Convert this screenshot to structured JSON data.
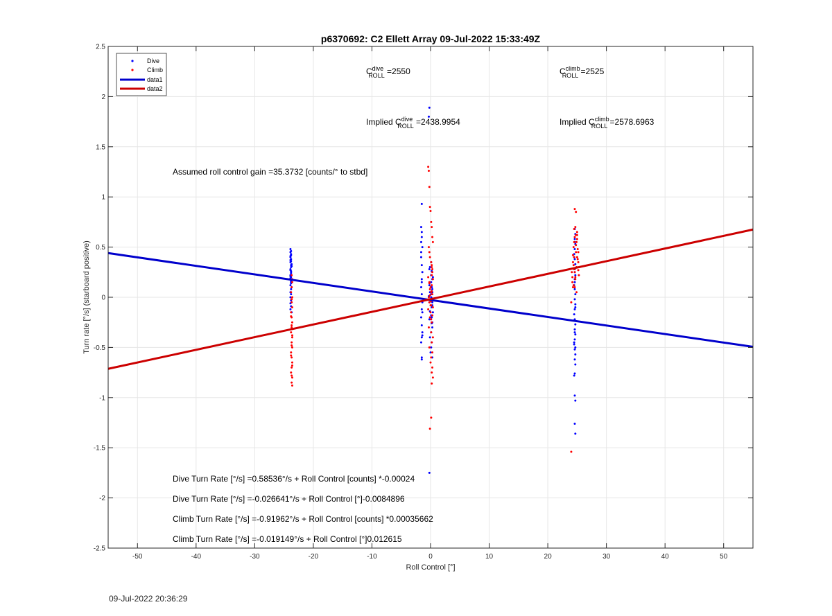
{
  "chart_data": {
    "type": "scatter",
    "title": "p6370692: C2 Ellett Array 09-Jul-2022 15:33:49Z",
    "xlabel": "Roll Control [°]",
    "ylabel": "Turn rate [°/s] (starboard positive)",
    "xlim": [
      -55,
      55
    ],
    "ylim": [
      -2.5,
      2.5
    ],
    "x_ticks": [
      -50,
      -40,
      -30,
      -20,
      -10,
      0,
      10,
      20,
      30,
      40,
      50
    ],
    "y_ticks": [
      -2.5,
      -2,
      -1.5,
      -1,
      -0.5,
      0,
      0.5,
      1,
      1.5,
      2,
      2.5
    ],
    "grid": true,
    "legend_position": "top-left",
    "series": [
      {
        "name": "Dive",
        "kind": "points",
        "color": "#0000ff",
        "x": [
          -23.9,
          -23.9,
          -23.8,
          -23.9,
          -23.8,
          -23.9,
          -23.7,
          -23.8,
          -23.9,
          -23.8,
          -23.9,
          -23.8,
          -23.9,
          -23.8,
          -23.9,
          -23.7,
          -23.8,
          -23.9,
          -23.8,
          -23.9,
          -23.8,
          -23.9,
          -23.8,
          -23.9,
          -23.7,
          -23.8,
          -23.9,
          -23.8,
          -23.9,
          -23.8,
          -23.9,
          -23.8,
          -23.8,
          -23.9,
          -23.8,
          -23.7,
          -23.8,
          -23.9,
          -23.8,
          -1.5,
          -1.6,
          -1.5,
          -1.4,
          -1.6,
          -1.5,
          -1.4,
          -1.5,
          -1.6,
          -1.5,
          -1.4,
          -1.5,
          -1.6,
          -1.5,
          -1.4,
          -1.5,
          -1.6,
          -1.5,
          -1.5,
          -1.6,
          -1.4,
          -1.5,
          -1.6,
          -1.5,
          -1.4,
          -0.2,
          -0.3,
          -0.1,
          -0.2,
          0.2,
          0.1,
          0.3,
          0.1,
          -0.2,
          0.2,
          0.3,
          -0.1,
          0.1,
          -0.3,
          0.2,
          0.1,
          -0.2,
          0.3,
          0.2,
          -0.1,
          0.1,
          -0.2,
          0.2,
          0.3,
          0.1,
          -0.1,
          0.2,
          0.1,
          0.0,
          0.3,
          -0.2,
          0.1,
          0.2,
          0.3,
          0.4,
          0.2,
          0.3,
          0.4,
          0.3,
          0.1,
          24.6,
          24.7,
          24.6,
          24.7,
          24.6,
          24.5,
          24.6,
          24.7,
          24.6,
          24.7,
          24.6,
          24.5,
          24.6,
          24.7,
          24.6,
          24.7,
          24.6,
          24.5,
          24.6,
          24.7,
          24.6,
          24.7,
          24.6,
          24.5,
          24.6,
          24.7,
          24.6,
          24.7,
          24.6,
          24.5,
          24.6,
          24.7,
          24.6,
          24.7,
          24.6,
          24.5,
          24.6,
          24.7,
          24.6,
          24.7,
          24.6,
          24.5
        ],
        "y": [
          0.48,
          0.45,
          0.43,
          0.4,
          0.38,
          0.35,
          0.33,
          0.3,
          0.27,
          0.25,
          0.22,
          0.2,
          0.18,
          0.15,
          0.12,
          0.1,
          0.08,
          0.05,
          0.03,
          0.0,
          -0.03,
          -0.06,
          -0.09,
          -0.12,
          -0.15,
          0.42,
          0.37,
          0.32,
          0.28,
          0.24,
          0.19,
          0.14,
          0.46,
          0.41,
          0.36,
          0.31,
          0.26,
          0.21,
          0.16,
          0.93,
          0.7,
          0.6,
          0.5,
          0.4,
          0.32,
          0.25,
          0.18,
          0.1,
          0.03,
          -0.05,
          -0.12,
          -0.2,
          -0.28,
          -0.35,
          -0.4,
          -0.45,
          -0.6,
          -0.62,
          0.55,
          -0.38,
          0.65,
          0.45,
          0.15,
          -0.15,
          1.89,
          1.8,
          0.3,
          0.28,
          0.26,
          0.22,
          0.18,
          0.15,
          0.12,
          0.1,
          0.08,
          0.05,
          0.03,
          0.01,
          -0.01,
          -0.03,
          -0.05,
          -0.08,
          -0.1,
          -0.14,
          -0.18,
          -0.22,
          -0.26,
          -0.3,
          -0.35,
          -0.4,
          -0.45,
          -0.5,
          -0.55,
          -0.6,
          -1.75,
          0.35,
          -0.2,
          0.05,
          -0.15,
          0.1,
          -0.25,
          0.2,
          -0.05,
          0.0,
          0.68,
          0.63,
          0.58,
          0.53,
          0.48,
          0.43,
          0.38,
          0.33,
          0.28,
          0.22,
          0.18,
          0.12,
          0.08,
          0.03,
          -0.02,
          -0.07,
          -0.12,
          -0.17,
          -0.22,
          -0.27,
          -0.32,
          -0.37,
          -0.42,
          -0.47,
          -0.52,
          -0.57,
          -0.62,
          -0.67,
          -0.76,
          -0.78,
          -0.98,
          -1.03,
          -1.26,
          -1.36,
          0.55,
          0.4,
          0.15,
          -0.1,
          -0.35,
          -0.5,
          0.25,
          -0.45
        ]
      },
      {
        "name": "Climb",
        "kind": "points",
        "color": "#ff0000",
        "x": [
          -23.7,
          -23.6,
          -23.7,
          -23.8,
          -23.6,
          -23.7,
          -23.6,
          -23.8,
          -23.7,
          -23.6,
          -23.7,
          -23.8,
          -23.6,
          -23.7,
          -23.6,
          -23.8,
          -23.7,
          -23.6,
          -23.7,
          -23.8,
          -23.6,
          -23.7,
          -23.6,
          -23.8,
          -23.7,
          -23.6,
          -23.7,
          -23.8,
          -23.6,
          -23.7,
          -23.6,
          -23.7,
          -0.4,
          -0.3,
          -0.2,
          -0.1,
          0.0,
          0.1,
          0.2,
          0.3,
          0.4,
          -0.3,
          -0.2,
          -0.1,
          0.1,
          0.2,
          0.3,
          -0.4,
          0.4,
          -0.2,
          0.2,
          0.0,
          -0.1,
          0.1,
          0.3,
          -0.3,
          0.2,
          -0.2,
          0.1,
          0.4,
          -0.4,
          0.0,
          0.3,
          -0.1,
          0.2,
          -0.3,
          0.1,
          0.4,
          0.2,
          -0.2,
          0.3,
          0.1,
          0.0,
          0.3,
          0.2,
          0.4,
          0.2,
          0.1,
          -0.1,
          0.3,
          0.2,
          0.1,
          -0.2,
          0.0,
          0.2,
          0.1,
          -0.1,
          0.2,
          24.0,
          24.2,
          24.3,
          24.4,
          24.5,
          24.6,
          24.8,
          25.0,
          25.2,
          25.4,
          24.1,
          24.3,
          24.5,
          24.7,
          24.9,
          25.1,
          25.3,
          24.2,
          24.4,
          24.6,
          24.8,
          25.0,
          25.2,
          24.3,
          24.5,
          24.7,
          24.9,
          25.1,
          24.4,
          24.6,
          24.8,
          25.0,
          24.5,
          24.7,
          24.9,
          24.6,
          24.8,
          25.0,
          24.0,
          25.2
        ],
        "y": [
          0.22,
          0.15,
          0.1,
          0.05,
          0.0,
          -0.05,
          -0.1,
          -0.15,
          -0.2,
          -0.25,
          -0.3,
          -0.35,
          -0.4,
          -0.45,
          -0.5,
          -0.55,
          -0.6,
          -0.65,
          -0.7,
          -0.75,
          -0.8,
          -0.85,
          -0.88,
          -0.19,
          -0.28,
          -0.38,
          -0.48,
          -0.58,
          -0.68,
          -0.78,
          0.18,
          -0.02,
          1.3,
          1.26,
          1.1,
          0.9,
          0.86,
          0.75,
          0.7,
          0.6,
          0.55,
          0.5,
          0.45,
          0.4,
          0.35,
          0.3,
          0.25,
          0.2,
          0.18,
          0.15,
          0.12,
          0.1,
          0.08,
          0.05,
          0.03,
          0.0,
          -0.02,
          -0.05,
          -0.08,
          -0.1,
          -0.12,
          -0.15,
          -0.18,
          -0.2,
          -0.25,
          -0.3,
          -0.35,
          -0.4,
          -0.45,
          -0.5,
          -0.55,
          -0.6,
          -0.65,
          -0.7,
          -0.75,
          -0.8,
          -0.86,
          -1.2,
          -1.31,
          0.28,
          0.22,
          -0.22,
          0.14,
          -0.08,
          0.06,
          -0.04,
          0.02,
          0.32,
          -0.05,
          0.2,
          0.35,
          0.5,
          0.55,
          0.6,
          0.62,
          0.65,
          0.45,
          0.3,
          0.25,
          0.1,
          0.4,
          0.7,
          0.55,
          0.48,
          0.22,
          0.15,
          0.32,
          0.88,
          0.85,
          0.62,
          0.35,
          0.42,
          0.28,
          0.18,
          0.05,
          0.38,
          0.12,
          0.25,
          0.52,
          0.4,
          0.68,
          0.2,
          0.3,
          0.1,
          0.45,
          0.58,
          -1.54,
          0.27
        ]
      },
      {
        "name": "data1",
        "kind": "line",
        "color": "#0000cc",
        "x": [
          -55,
          55
        ],
        "y": [
          0.44,
          -0.494
        ]
      },
      {
        "name": "data2",
        "kind": "line",
        "color": "#cc0000",
        "x": [
          -55,
          55
        ],
        "y": [
          -0.713,
          0.675
        ]
      }
    ],
    "annotations": {
      "c_dive_base": "C",
      "c_dive_sup": "dive",
      "c_dive_sub": "ROLL",
      "c_dive_val": " =2550",
      "c_climb_base": "C",
      "c_climb_sup": "climb",
      "c_climb_sub": "ROLL",
      "c_climb_val": " =2525",
      "implied_dive_prefix": "Implied C",
      "implied_dive_sup": "dive",
      "implied_dive_sub": "ROLL",
      "implied_dive_val": " =2438.9954",
      "implied_climb_prefix": "Implied C",
      "implied_climb_sup": "climb",
      "implied_climb_sub": "ROLL",
      "implied_climb_val": " =2578.6963",
      "gain": "Assumed roll control gain =35.3732 [counts/° to stbd]",
      "eq1": "Dive Turn Rate [°/s] =0.58536°/s + Roll Control [counts] *-0.00024",
      "eq2": "Dive Turn Rate [°/s] =-0.026641°/s + Roll Control [°]-0.0084896",
      "eq3": "Climb Turn Rate [°/s] =-0.91962°/s + Roll Control [counts] *0.00035662",
      "eq4": "Climb Turn Rate [°/s] =-0.019149°/s + Roll Control [°]0.012615"
    }
  },
  "footer": {
    "timestamp": "09-Jul-2022 20:36:29"
  }
}
